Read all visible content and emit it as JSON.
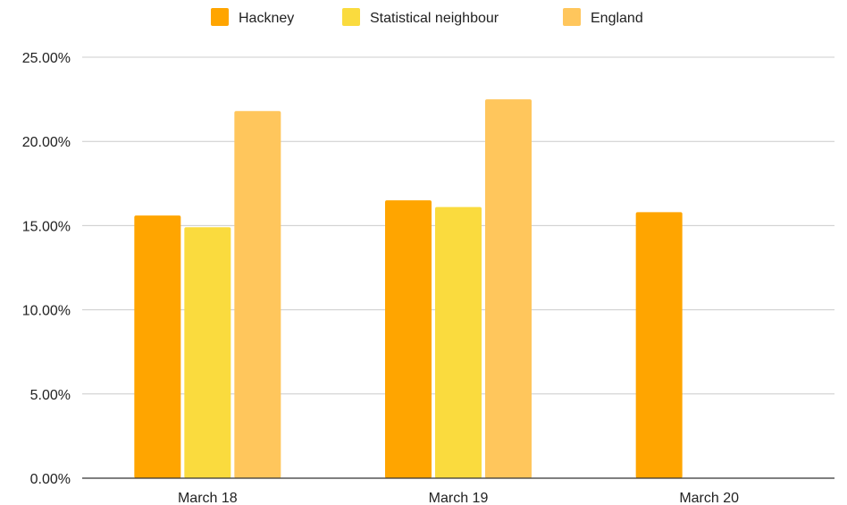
{
  "chart_data": {
    "type": "bar",
    "categories": [
      "March 18",
      "March 19",
      "March 20"
    ],
    "series": [
      {
        "name": "Hackney",
        "color": "#FFA500",
        "values": [
          15.6,
          16.5,
          15.8
        ]
      },
      {
        "name": "Statistical neighbour",
        "color": "#FADB3E",
        "values": [
          14.9,
          16.1,
          null
        ]
      },
      {
        "name": "England",
        "color": "#FFC65C",
        "values": [
          21.8,
          22.5,
          null
        ]
      }
    ],
    "ylim": [
      0,
      25
    ],
    "yticks": [
      0,
      5,
      10,
      15,
      20,
      25
    ],
    "ytick_labels": [
      "0.00%",
      "5.00%",
      "10.00%",
      "15.00%",
      "20.00%",
      "25.00%"
    ],
    "grid": true,
    "legend_position": "top-center",
    "title": "",
    "xlabel": "",
    "ylabel": ""
  }
}
